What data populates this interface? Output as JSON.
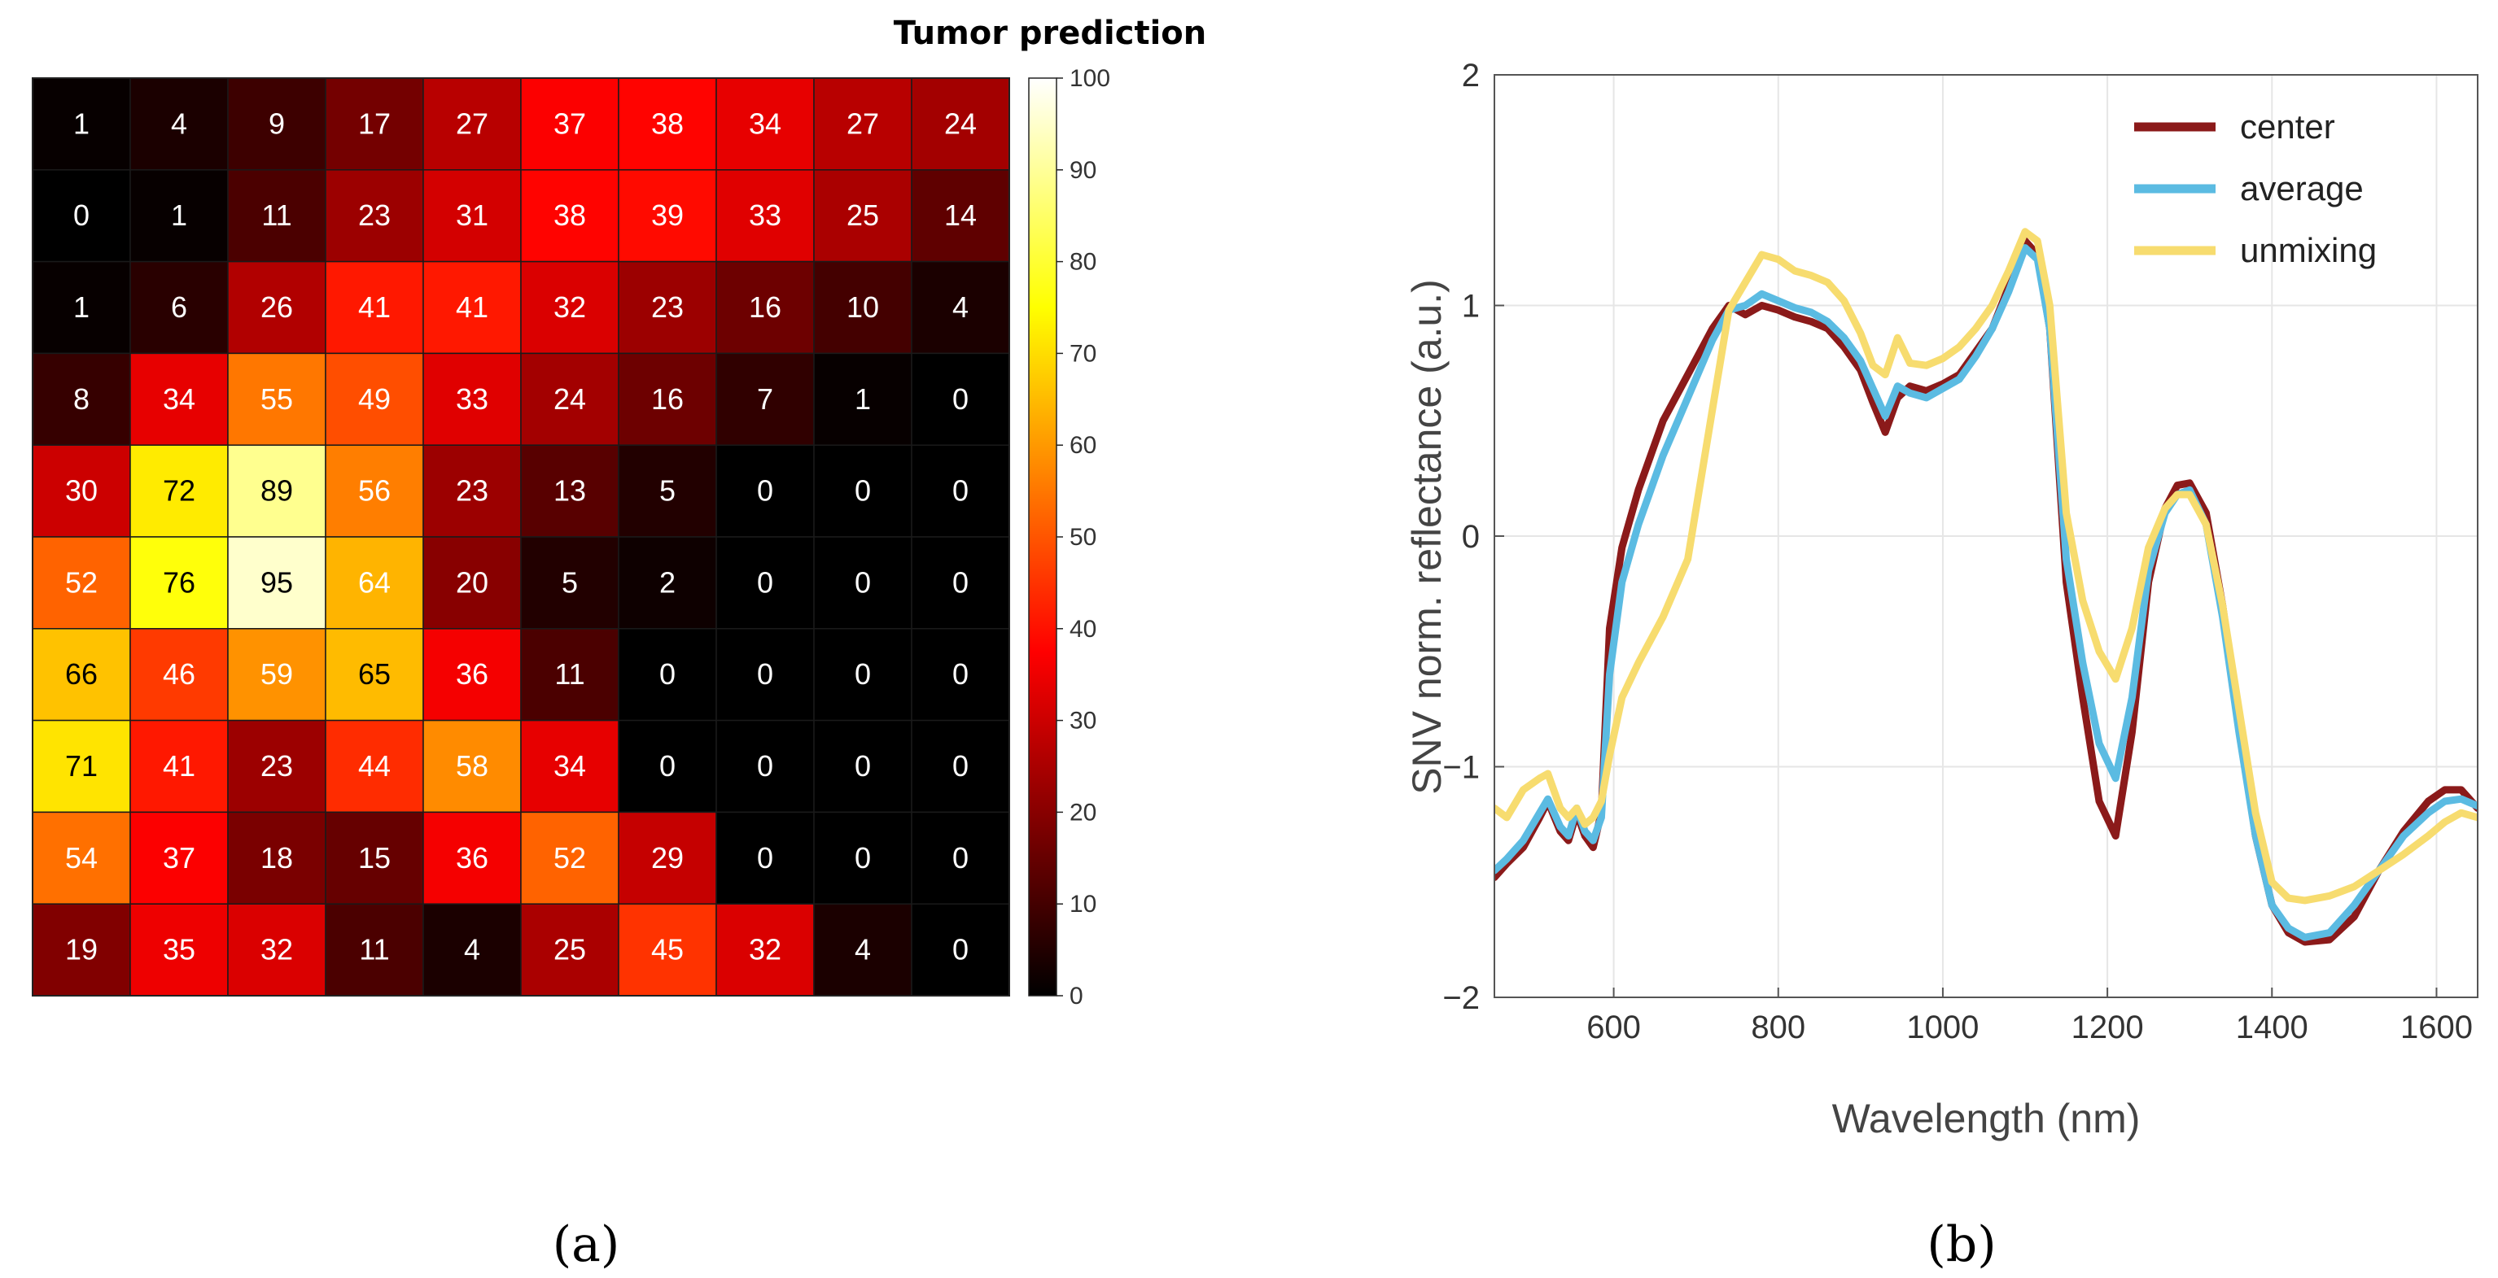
{
  "panel_labels": {
    "a": "(a)",
    "b": "(b)"
  },
  "chart_data": [
    {
      "type": "heatmap",
      "title": "Tumor prediction",
      "colormap": "hot",
      "zlim": [
        0,
        100
      ],
      "colorbar_ticks": [
        0,
        10,
        20,
        30,
        40,
        50,
        60,
        70,
        80,
        90,
        100
      ],
      "values": [
        [
          1,
          4,
          9,
          17,
          27,
          37,
          38,
          34,
          27,
          24
        ],
        [
          0,
          1,
          11,
          23,
          31,
          38,
          39,
          33,
          25,
          14
        ],
        [
          1,
          6,
          26,
          41,
          41,
          32,
          23,
          16,
          10,
          4
        ],
        [
          8,
          34,
          55,
          49,
          33,
          24,
          16,
          7,
          1,
          0
        ],
        [
          30,
          72,
          89,
          56,
          23,
          13,
          5,
          0,
          0,
          0
        ],
        [
          52,
          76,
          95,
          64,
          20,
          5,
          2,
          0,
          0,
          0
        ],
        [
          66,
          46,
          59,
          65,
          36,
          11,
          0,
          0,
          0,
          0
        ],
        [
          71,
          41,
          23,
          44,
          58,
          34,
          0,
          0,
          0,
          0
        ],
        [
          54,
          37,
          18,
          15,
          36,
          52,
          29,
          0,
          0,
          0
        ],
        [
          19,
          35,
          32,
          11,
          4,
          25,
          45,
          32,
          4,
          0
        ]
      ]
    },
    {
      "type": "line",
      "xlabel": "Wavelength (nm)",
      "ylabel": "SNV norm. reflectance (a.u.)",
      "xlim": [
        455,
        1650
      ],
      "ylim": [
        -2,
        2
      ],
      "xticks": [
        600,
        800,
        1000,
        1200,
        1400,
        1600
      ],
      "yticks": [
        2,
        1,
        0,
        -1,
        -2
      ],
      "legend_position": "top-right",
      "series": [
        {
          "name": "center",
          "color": "#8b1a1a",
          "x": [
            455,
            470,
            490,
            510,
            520,
            535,
            545,
            555,
            565,
            575,
            585,
            595,
            610,
            630,
            660,
            690,
            720,
            740,
            760,
            780,
            800,
            820,
            840,
            860,
            880,
            900,
            915,
            930,
            945,
            960,
            980,
            1000,
            1020,
            1040,
            1060,
            1080,
            1100,
            1115,
            1130,
            1150,
            1170,
            1190,
            1210,
            1230,
            1250,
            1270,
            1285,
            1300,
            1320,
            1340,
            1360,
            1380,
            1400,
            1420,
            1440,
            1470,
            1500,
            1530,
            1560,
            1590,
            1610,
            1630,
            1650
          ],
          "y": [
            -1.48,
            -1.42,
            -1.35,
            -1.22,
            -1.15,
            -1.28,
            -1.32,
            -1.2,
            -1.3,
            -1.35,
            -1.2,
            -0.4,
            -0.05,
            0.2,
            0.5,
            0.7,
            0.9,
            1.0,
            0.96,
            1.0,
            0.98,
            0.95,
            0.93,
            0.9,
            0.82,
            0.72,
            0.58,
            0.45,
            0.6,
            0.65,
            0.63,
            0.66,
            0.7,
            0.8,
            0.9,
            1.08,
            1.28,
            1.22,
            0.9,
            -0.2,
            -0.7,
            -1.15,
            -1.3,
            -0.85,
            -0.2,
            0.12,
            0.22,
            0.23,
            0.1,
            -0.3,
            -0.8,
            -1.3,
            -1.6,
            -1.72,
            -1.76,
            -1.75,
            -1.65,
            -1.45,
            -1.28,
            -1.15,
            -1.1,
            -1.1,
            -1.18
          ]
        },
        {
          "name": "average",
          "color": "#5bbbe2",
          "x": [
            455,
            470,
            490,
            510,
            520,
            535,
            545,
            555,
            565,
            575,
            585,
            595,
            610,
            630,
            660,
            690,
            720,
            740,
            760,
            780,
            800,
            820,
            840,
            860,
            880,
            900,
            915,
            930,
            945,
            960,
            980,
            1000,
            1020,
            1040,
            1060,
            1080,
            1100,
            1115,
            1130,
            1150,
            1170,
            1190,
            1210,
            1230,
            1250,
            1270,
            1285,
            1300,
            1320,
            1340,
            1360,
            1380,
            1400,
            1420,
            1440,
            1470,
            1500,
            1530,
            1560,
            1590,
            1610,
            1630,
            1650
          ],
          "y": [
            -1.45,
            -1.4,
            -1.32,
            -1.2,
            -1.14,
            -1.26,
            -1.3,
            -1.18,
            -1.28,
            -1.32,
            -1.22,
            -0.6,
            -0.2,
            0.05,
            0.35,
            0.6,
            0.85,
            0.98,
            1.0,
            1.05,
            1.02,
            0.99,
            0.97,
            0.93,
            0.86,
            0.76,
            0.64,
            0.52,
            0.65,
            0.62,
            0.6,
            0.64,
            0.68,
            0.78,
            0.9,
            1.06,
            1.25,
            1.2,
            0.9,
            -0.1,
            -0.55,
            -0.9,
            -1.05,
            -0.7,
            -0.15,
            0.1,
            0.18,
            0.2,
            0.05,
            -0.35,
            -0.85,
            -1.3,
            -1.6,
            -1.7,
            -1.74,
            -1.72,
            -1.6,
            -1.45,
            -1.3,
            -1.2,
            -1.15,
            -1.14,
            -1.17
          ]
        },
        {
          "name": "unmixing",
          "color": "#f7dc6f",
          "x": [
            455,
            470,
            490,
            510,
            520,
            535,
            545,
            555,
            565,
            575,
            585,
            595,
            610,
            630,
            660,
            690,
            720,
            740,
            760,
            780,
            800,
            820,
            840,
            860,
            880,
            900,
            915,
            930,
            945,
            960,
            980,
            1000,
            1020,
            1040,
            1060,
            1080,
            1100,
            1115,
            1130,
            1150,
            1170,
            1190,
            1210,
            1230,
            1250,
            1270,
            1285,
            1300,
            1320,
            1340,
            1360,
            1380,
            1400,
            1420,
            1440,
            1470,
            1500,
            1530,
            1560,
            1590,
            1610,
            1630,
            1650
          ],
          "y": [
            -1.18,
            -1.22,
            -1.1,
            -1.05,
            -1.03,
            -1.18,
            -1.22,
            -1.18,
            -1.25,
            -1.22,
            -1.15,
            -0.95,
            -0.7,
            -0.55,
            -0.35,
            -0.1,
            0.55,
            0.98,
            1.1,
            1.22,
            1.2,
            1.15,
            1.13,
            1.1,
            1.02,
            0.88,
            0.74,
            0.7,
            0.86,
            0.75,
            0.74,
            0.77,
            0.82,
            0.9,
            1.0,
            1.15,
            1.32,
            1.28,
            1.0,
            0.1,
            -0.28,
            -0.5,
            -0.62,
            -0.4,
            -0.05,
            0.12,
            0.18,
            0.18,
            0.05,
            -0.3,
            -0.75,
            -1.2,
            -1.5,
            -1.57,
            -1.58,
            -1.56,
            -1.52,
            -1.45,
            -1.38,
            -1.3,
            -1.24,
            -1.2,
            -1.22
          ]
        }
      ]
    }
  ]
}
